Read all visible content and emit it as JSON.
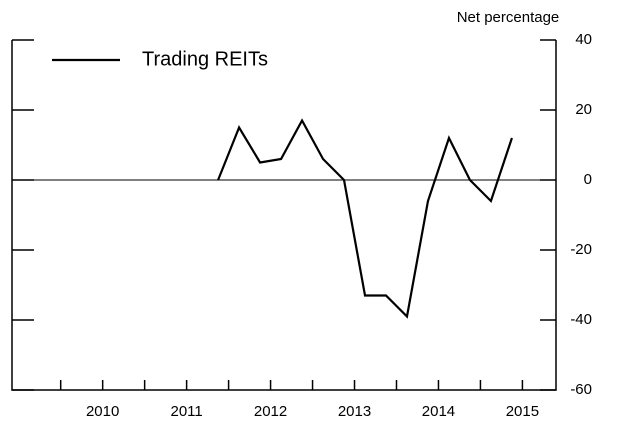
{
  "chart_data": {
    "type": "line",
    "y_axis_label": "Net percentage",
    "x": [
      2011.875,
      2012.125,
      2012.375,
      2012.625,
      2012.875,
      2013.125,
      2013.375,
      2013.625,
      2013.875,
      2014.125,
      2014.375,
      2014.625,
      2014.875,
      2015.125,
      2015.375
    ],
    "series": [
      {
        "name": "Trading REITs",
        "color": "#000000",
        "values": [
          0,
          15,
          5,
          6,
          17,
          6,
          0,
          -33,
          -33,
          -39,
          -6,
          12,
          0,
          -6,
          12
        ]
      }
    ],
    "xlim": [
      2009.42,
      2015.9
    ],
    "xticks": [
      {
        "value": 2010.5,
        "label": "2010"
      },
      {
        "value": 2011.5,
        "label": "2011"
      },
      {
        "value": 2012.5,
        "label": "2012"
      },
      {
        "value": 2013.5,
        "label": "2013"
      },
      {
        "value": 2014.5,
        "label": "2014"
      },
      {
        "value": 2015.5,
        "label": "2015"
      }
    ],
    "xminorticks": [
      2010,
      2011,
      2012,
      2013,
      2014,
      2015
    ],
    "ylim": [
      -60,
      40
    ],
    "yticks": [
      40,
      20,
      0,
      -20,
      -40,
      -60
    ],
    "legend": "upper left"
  }
}
